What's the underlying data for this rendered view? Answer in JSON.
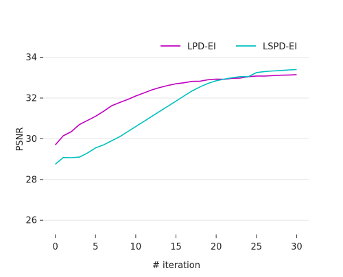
{
  "chart_data": {
    "type": "line",
    "xlabel": "# iteration",
    "ylabel": "PSNR",
    "xlim": [
      -1.5,
      31.5
    ],
    "ylim": [
      25.3,
      35.3
    ],
    "x_ticks": [
      0,
      5,
      10,
      15,
      20,
      25,
      30
    ],
    "y_ticks": [
      26,
      28,
      30,
      32,
      34
    ],
    "grid": "horizontal",
    "legend_position": "top-right",
    "series": [
      {
        "name": "LPD-EI",
        "color": "#bf00bf",
        "x": [
          0,
          1,
          2,
          3,
          4,
          5,
          6,
          7,
          8,
          9,
          10,
          11,
          12,
          13,
          14,
          15,
          16,
          17,
          18,
          19,
          20,
          21,
          22,
          23,
          24,
          25,
          26,
          27,
          28,
          29,
          30
        ],
        "values": [
          29.7,
          30.15,
          30.35,
          30.7,
          30.9,
          31.1,
          31.35,
          31.62,
          31.78,
          31.93,
          32.1,
          32.25,
          32.4,
          32.52,
          32.62,
          32.7,
          32.75,
          32.82,
          32.83,
          32.9,
          32.93,
          32.92,
          32.97,
          32.98,
          33.05,
          33.08,
          33.08,
          33.1,
          33.12,
          33.13,
          33.15
        ]
      },
      {
        "name": "LSPD-EI",
        "color": "#00bfbf",
        "x": [
          0,
          1,
          2,
          3,
          4,
          5,
          6,
          7,
          8,
          9,
          10,
          11,
          12,
          13,
          14,
          15,
          16,
          17,
          18,
          19,
          20,
          21,
          22,
          23,
          24,
          25,
          26,
          27,
          28,
          29,
          30
        ],
        "values": [
          28.75,
          29.08,
          29.07,
          29.1,
          29.3,
          29.55,
          29.7,
          29.9,
          30.1,
          30.35,
          30.6,
          30.85,
          31.1,
          31.35,
          31.6,
          31.85,
          32.1,
          32.35,
          32.55,
          32.72,
          32.85,
          32.93,
          33.0,
          33.05,
          33.05,
          33.25,
          33.3,
          33.33,
          33.35,
          33.38,
          33.4
        ]
      }
    ]
  }
}
